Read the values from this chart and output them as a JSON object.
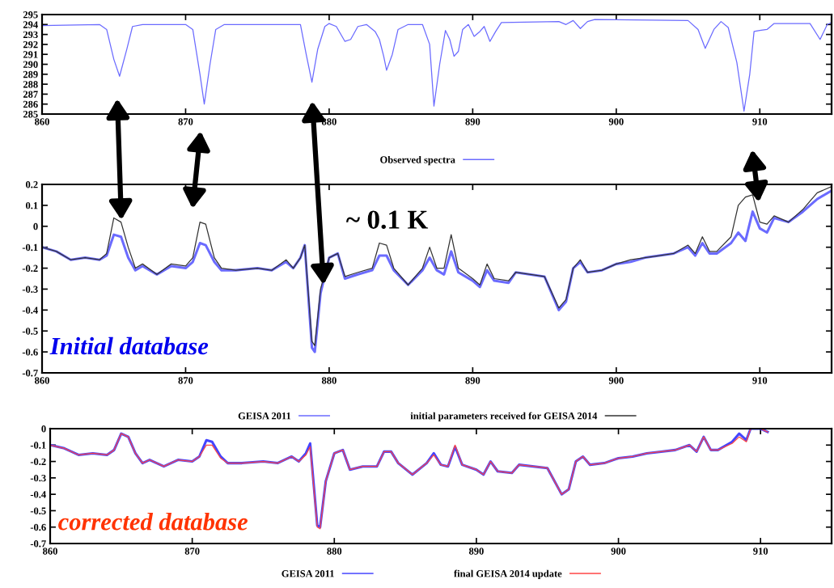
{
  "chart_data": [
    {
      "type": "line",
      "legend": "bottom",
      "grid": false,
      "xlim": [
        860,
        915
      ],
      "ylim": [
        285,
        295
      ],
      "xticks": [
        860,
        870,
        880,
        890,
        900,
        910
      ],
      "yticks": [
        285,
        286,
        287,
        288,
        289,
        290,
        291,
        292,
        293,
        294,
        295
      ],
      "series": [
        {
          "name": "Observed spectra",
          "color": "#6b6bff",
          "x": [
            860,
            864,
            864.5,
            865,
            865.4,
            865.9,
            866.3,
            867,
            870,
            870.5,
            871,
            871.3,
            871.7,
            872.1,
            872.7,
            878,
            878.4,
            878.8,
            879.2,
            879.7,
            880,
            880.5,
            881.1,
            881.5,
            882,
            882.6,
            883.2,
            883.5,
            883.8,
            884,
            884.4,
            884.8,
            885.5,
            886.5,
            887,
            887.3,
            887.7,
            888.1,
            888.4,
            888.7,
            889,
            889.3,
            889.7,
            890.1,
            890.5,
            890.8,
            891.2,
            891.6,
            892,
            896,
            896.5,
            897,
            897.5,
            898,
            898.5,
            905,
            905.7,
            906.2,
            906.8,
            907.3,
            907.8,
            908.4,
            908.9,
            909.3,
            909.6,
            910,
            910.5,
            911,
            913.5,
            914.2,
            914.7,
            915
          ],
          "values": [
            293.9,
            294.0,
            293.5,
            290.5,
            288.8,
            291.5,
            293.8,
            294.0,
            294.0,
            293.5,
            289,
            286.0,
            290,
            293.5,
            294.0,
            294.0,
            291,
            288.2,
            291.5,
            293.8,
            294.1,
            293.8,
            292.3,
            292.5,
            293.8,
            294.0,
            293.3,
            292.5,
            290.8,
            289.4,
            291,
            293.5,
            294.0,
            294.0,
            292,
            285.8,
            290,
            293.4,
            292.5,
            290.8,
            291.3,
            293.5,
            294.0,
            292.8,
            293.3,
            293.8,
            292.3,
            293.3,
            294.2,
            294.3,
            294.0,
            294.4,
            293.6,
            294.3,
            294.5,
            294.4,
            293.5,
            291.6,
            293.5,
            294.3,
            293.7,
            290.2,
            285.3,
            289,
            293.3,
            293.4,
            293.5,
            294.1,
            294.1,
            292.5,
            294.0,
            294.2
          ]
        }
      ]
    },
    {
      "type": "line",
      "legend": "bottom",
      "grid": false,
      "xlim": [
        860,
        915
      ],
      "ylim": [
        -0.7,
        0.2
      ],
      "xticks": [
        860,
        870,
        880,
        890,
        900,
        910
      ],
      "yticks": [
        -0.7,
        -0.6,
        -0.5,
        -0.4,
        -0.3,
        -0.2,
        -0.1,
        0,
        0.1,
        0.2
      ],
      "annotations": [
        "~ 0.1 K",
        "Initial database"
      ],
      "series": [
        {
          "name": "GEISA 2011",
          "color": "#6b6bff",
          "x": [
            860,
            861,
            862,
            863,
            864,
            864.5,
            865,
            865.5,
            866,
            866.5,
            867,
            868,
            869,
            870,
            870.5,
            871,
            871.4,
            872,
            872.5,
            873.5,
            875,
            876,
            877,
            877.5,
            878,
            878.3,
            878.8,
            879,
            879.4,
            880,
            880.6,
            881.1,
            882,
            883,
            883.5,
            884,
            884.5,
            885.5,
            886.5,
            887,
            887.5,
            888,
            888.5,
            889,
            890,
            890.5,
            891,
            891.5,
            892.5,
            893,
            895,
            896,
            896.5,
            897,
            897.5,
            898,
            899,
            900,
            901,
            902,
            903,
            904,
            905,
            905.5,
            906,
            906.5,
            907,
            908,
            908.5,
            909,
            909.5,
            910,
            910.5,
            911,
            912,
            913,
            913.5,
            914,
            915
          ],
          "values": [
            -0.1,
            -0.12,
            -0.16,
            -0.15,
            -0.16,
            -0.14,
            -0.04,
            -0.05,
            -0.15,
            -0.21,
            -0.19,
            -0.23,
            -0.19,
            -0.2,
            -0.17,
            -0.08,
            -0.09,
            -0.17,
            -0.21,
            -0.21,
            -0.2,
            -0.21,
            -0.17,
            -0.2,
            -0.15,
            -0.09,
            -0.58,
            -0.6,
            -0.32,
            -0.15,
            -0.13,
            -0.25,
            -0.23,
            -0.21,
            -0.14,
            -0.14,
            -0.21,
            -0.28,
            -0.21,
            -0.15,
            -0.21,
            -0.23,
            -0.12,
            -0.22,
            -0.26,
            -0.29,
            -0.21,
            -0.26,
            -0.27,
            -0.22,
            -0.24,
            -0.4,
            -0.36,
            -0.2,
            -0.17,
            -0.22,
            -0.21,
            -0.18,
            -0.17,
            -0.15,
            -0.14,
            -0.13,
            -0.1,
            -0.14,
            -0.08,
            -0.13,
            -0.13,
            -0.08,
            -0.03,
            -0.07,
            0.07,
            -0.01,
            -0.03,
            0.04,
            0.02,
            0.07,
            0.1,
            0.13,
            0.17
          ]
        },
        {
          "name": "initial parameters received for GEISA 2014",
          "color": "#333333",
          "x": [
            860,
            861,
            862,
            863,
            864,
            864.5,
            865,
            865.5,
            866,
            866.5,
            867,
            868,
            869,
            870,
            870.5,
            871,
            871.4,
            872,
            872.5,
            873.5,
            875,
            876,
            877,
            877.5,
            878,
            878.3,
            878.8,
            879,
            879.4,
            880,
            880.6,
            881.1,
            882,
            883,
            883.5,
            884,
            884.5,
            885.5,
            886.5,
            887,
            887.5,
            888,
            888.5,
            889,
            890,
            890.5,
            891,
            891.5,
            892.5,
            893,
            895,
            896,
            896.5,
            897,
            897.5,
            898,
            899,
            900,
            901,
            902,
            903,
            904,
            905,
            905.5,
            906,
            906.5,
            907,
            908,
            908.5,
            909,
            909.5,
            910,
            910.5,
            911,
            912,
            913,
            913.5,
            914,
            915
          ],
          "values": [
            -0.1,
            -0.12,
            -0.16,
            -0.15,
            -0.16,
            -0.13,
            0.04,
            0.02,
            -0.1,
            -0.2,
            -0.18,
            -0.23,
            -0.18,
            -0.19,
            -0.15,
            0.02,
            0.01,
            -0.15,
            -0.2,
            -0.21,
            -0.2,
            -0.21,
            -0.16,
            -0.2,
            -0.15,
            -0.09,
            -0.55,
            -0.57,
            -0.3,
            -0.15,
            -0.13,
            -0.24,
            -0.22,
            -0.2,
            -0.08,
            -0.09,
            -0.2,
            -0.28,
            -0.2,
            -0.1,
            -0.2,
            -0.2,
            -0.04,
            -0.2,
            -0.25,
            -0.28,
            -0.18,
            -0.25,
            -0.26,
            -0.22,
            -0.24,
            -0.39,
            -0.35,
            -0.2,
            -0.16,
            -0.22,
            -0.21,
            -0.18,
            -0.16,
            -0.15,
            -0.14,
            -0.13,
            -0.09,
            -0.13,
            -0.05,
            -0.12,
            -0.12,
            -0.05,
            0.1,
            0.14,
            0.15,
            0.02,
            0.01,
            0.05,
            0.02,
            0.08,
            0.12,
            0.16,
            0.19
          ]
        }
      ]
    },
    {
      "type": "line",
      "legend": "bottom",
      "grid": false,
      "xlim": [
        860,
        915
      ],
      "ylim": [
        -0.7,
        0
      ],
      "xticks": [
        860,
        870,
        880,
        890,
        900,
        910
      ],
      "yticks": [
        -0.7,
        -0.6,
        -0.5,
        -0.4,
        -0.3,
        -0.2,
        -0.1,
        0
      ],
      "annotations": [
        "corrected database"
      ],
      "series": [
        {
          "name": "GEISA 2011",
          "color": "#4444ff",
          "x": [
            860,
            861,
            862,
            863,
            864,
            864.5,
            865,
            865.5,
            866,
            866.5,
            867,
            868,
            869,
            870,
            870.5,
            871,
            871.4,
            872,
            872.5,
            873.5,
            875,
            876,
            877,
            877.5,
            878,
            878.3,
            878.8,
            879,
            879.4,
            880,
            880.6,
            881.1,
            882,
            883,
            883.5,
            884,
            884.5,
            885.5,
            886.5,
            887,
            887.5,
            888,
            888.5,
            889,
            890,
            890.5,
            891,
            891.5,
            892.5,
            893,
            895,
            896,
            896.5,
            897,
            897.5,
            898,
            899,
            900,
            901,
            902,
            903,
            904,
            905,
            905.5,
            906,
            906.5,
            907,
            908,
            908.5,
            909,
            909.3,
            910,
            910.5
          ],
          "values": [
            -0.1,
            -0.12,
            -0.16,
            -0.15,
            -0.16,
            -0.13,
            -0.03,
            -0.05,
            -0.15,
            -0.21,
            -0.19,
            -0.23,
            -0.19,
            -0.2,
            -0.17,
            -0.07,
            -0.08,
            -0.17,
            -0.21,
            -0.21,
            -0.2,
            -0.21,
            -0.17,
            -0.2,
            -0.15,
            -0.09,
            -0.59,
            -0.6,
            -0.32,
            -0.15,
            -0.13,
            -0.25,
            -0.23,
            -0.23,
            -0.14,
            -0.14,
            -0.21,
            -0.28,
            -0.21,
            -0.15,
            -0.22,
            -0.23,
            -0.11,
            -0.22,
            -0.25,
            -0.28,
            -0.2,
            -0.26,
            -0.27,
            -0.22,
            -0.24,
            -0.4,
            -0.37,
            -0.2,
            -0.17,
            -0.22,
            -0.21,
            -0.18,
            -0.17,
            -0.15,
            -0.14,
            -0.13,
            -0.1,
            -0.14,
            -0.05,
            -0.13,
            -0.13,
            -0.08,
            -0.03,
            -0.07,
            0,
            0,
            -0.02
          ]
        },
        {
          "name": "final GEISA 2014 update",
          "color": "#ff4444",
          "x": [
            860,
            861,
            862,
            863,
            864,
            864.5,
            865,
            865.5,
            866,
            866.5,
            867,
            868,
            869,
            870,
            870.5,
            871,
            871.4,
            872,
            872.5,
            873.5,
            875,
            876,
            877,
            877.5,
            878,
            878.3,
            878.8,
            879,
            879.4,
            880,
            880.6,
            881.1,
            882,
            883,
            883.5,
            884,
            884.5,
            885.5,
            886.5,
            887,
            887.5,
            888,
            888.5,
            889,
            890,
            890.5,
            891,
            891.5,
            892.5,
            893,
            895,
            896,
            896.5,
            897,
            897.5,
            898,
            899,
            900,
            901,
            902,
            903,
            904,
            905,
            905.5,
            906,
            906.5,
            907,
            908,
            908.5,
            909,
            909.3,
            910,
            910.5
          ],
          "values": [
            -0.1,
            -0.12,
            -0.16,
            -0.15,
            -0.16,
            -0.13,
            -0.03,
            -0.05,
            -0.15,
            -0.21,
            -0.19,
            -0.23,
            -0.19,
            -0.2,
            -0.17,
            -0.1,
            -0.1,
            -0.18,
            -0.21,
            -0.21,
            -0.2,
            -0.21,
            -0.17,
            -0.2,
            -0.16,
            -0.11,
            -0.6,
            -0.61,
            -0.32,
            -0.15,
            -0.13,
            -0.25,
            -0.23,
            -0.23,
            -0.14,
            -0.14,
            -0.21,
            -0.28,
            -0.21,
            -0.16,
            -0.22,
            -0.23,
            -0.1,
            -0.22,
            -0.25,
            -0.28,
            -0.2,
            -0.26,
            -0.27,
            -0.22,
            -0.24,
            -0.4,
            -0.37,
            -0.2,
            -0.17,
            -0.22,
            -0.21,
            -0.18,
            -0.17,
            -0.15,
            -0.14,
            -0.13,
            -0.1,
            -0.14,
            -0.05,
            -0.13,
            -0.13,
            -0.09,
            -0.05,
            -0.08,
            0,
            0,
            -0.02
          ]
        }
      ]
    }
  ]
}
